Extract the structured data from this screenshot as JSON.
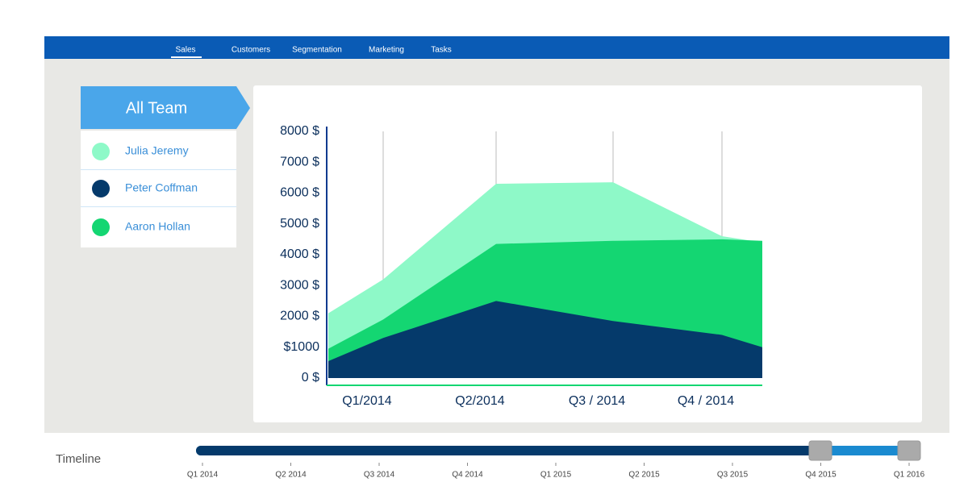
{
  "nav": {
    "items": [
      "Sales",
      "Customers",
      "Segmentation",
      "Marketing",
      "Tasks"
    ]
  },
  "legend": {
    "title": "All Team"
  },
  "chart_data": {
    "type": "area",
    "categories": [
      null,
      "Q1/2014",
      "Q2/2014",
      "Q3 / 2014",
      "Q4 / 2014",
      null
    ],
    "series": [
      {
        "name": "Julia Jeremy",
        "color": "#8ef9c8",
        "values": [
          2100,
          3200,
          6300,
          6350,
          4600,
          4400
        ]
      },
      {
        "name": "Peter Coffman",
        "color": "#053a6b",
        "values": [
          550,
          1300,
          2500,
          1850,
          1400,
          1000
        ]
      },
      {
        "name": "Aaron Hollan",
        "color": "#14d672",
        "values": [
          950,
          1900,
          4350,
          4450,
          4500,
          4450
        ]
      }
    ],
    "draw_order": [
      0,
      2,
      1
    ],
    "ylim": [
      0,
      8000
    ],
    "yticks": [
      {
        "value": 0,
        "label": "0 $"
      },
      {
        "value": 1000,
        "label": "$1000"
      },
      {
        "value": 2000,
        "label": "2000 $"
      },
      {
        "value": 3000,
        "label": "3000 $"
      },
      {
        "value": 4000,
        "label": "4000 $"
      },
      {
        "value": 5000,
        "label": "5000 $"
      },
      {
        "value": 6000,
        "label": "6000 $"
      },
      {
        "value": 7000,
        "label": "7000 $"
      },
      {
        "value": 8000,
        "label": "8000 $"
      }
    ],
    "grid": true
  },
  "timeline": {
    "label": "Timeline",
    "ticks": [
      "Q1 2014",
      "Q2 2014",
      "Q3 2014",
      "Q4 2014",
      "Q1 2015",
      "Q2 2015",
      "Q3 2015",
      "Q4 2015",
      "Q1 2016"
    ]
  }
}
